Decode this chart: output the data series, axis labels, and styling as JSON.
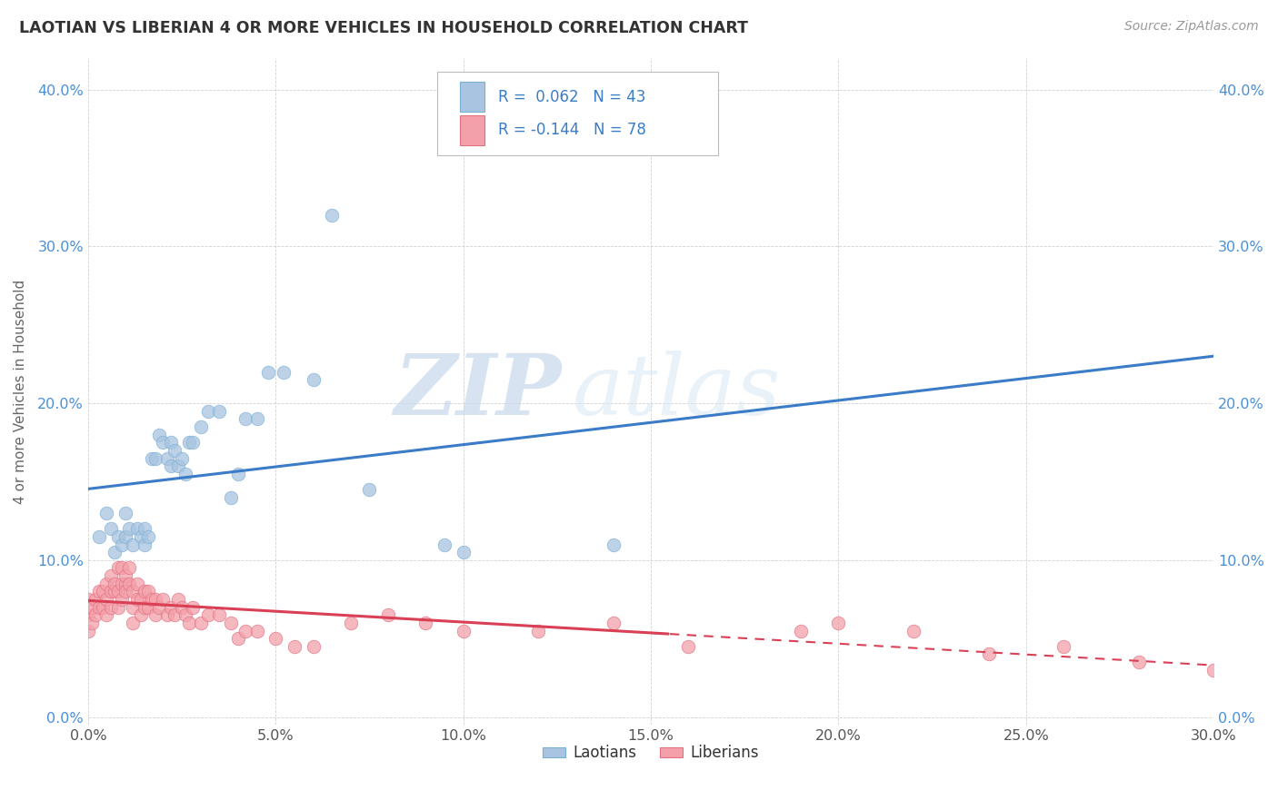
{
  "title": "LAOTIAN VS LIBERIAN 4 OR MORE VEHICLES IN HOUSEHOLD CORRELATION CHART",
  "source": "Source: ZipAtlas.com",
  "ylabel": "4 or more Vehicles in Household",
  "xlim": [
    0.0,
    0.3
  ],
  "ylim": [
    -0.005,
    0.42
  ],
  "xticks": [
    0.0,
    0.05,
    0.1,
    0.15,
    0.2,
    0.25,
    0.3
  ],
  "yticks": [
    0.0,
    0.1,
    0.2,
    0.3,
    0.4
  ],
  "xtick_labels": [
    "0.0%",
    "5.0%",
    "10.0%",
    "15.0%",
    "20.0%",
    "25.0%",
    "30.0%"
  ],
  "ytick_labels": [
    "0.0%",
    "10.0%",
    "20.0%",
    "30.0%",
    "40.0%"
  ],
  "laotian_color": "#a8c4e0",
  "liberian_color": "#f4a0aa",
  "laotian_edge_color": "#7aafd4",
  "liberian_edge_color": "#e07080",
  "laotian_line_color": "#3a7cc7",
  "liberian_line_color": "#d94055",
  "laotian_R": 0.062,
  "laotian_N": 43,
  "liberian_R": -0.144,
  "liberian_N": 78,
  "watermark_zip": "ZIP",
  "watermark_atlas": "atlas",
  "legend_laotian": "Laotians",
  "legend_liberian": "Liberians",
  "laotian_x": [
    0.003,
    0.005,
    0.006,
    0.007,
    0.008,
    0.009,
    0.01,
    0.01,
    0.011,
    0.012,
    0.013,
    0.014,
    0.015,
    0.015,
    0.016,
    0.017,
    0.018,
    0.019,
    0.02,
    0.021,
    0.022,
    0.022,
    0.023,
    0.024,
    0.025,
    0.026,
    0.027,
    0.028,
    0.03,
    0.032,
    0.035,
    0.038,
    0.04,
    0.042,
    0.045,
    0.048,
    0.052,
    0.06,
    0.065,
    0.075,
    0.095,
    0.1,
    0.14
  ],
  "laotian_y": [
    0.115,
    0.13,
    0.12,
    0.105,
    0.115,
    0.11,
    0.13,
    0.115,
    0.12,
    0.11,
    0.12,
    0.115,
    0.11,
    0.12,
    0.115,
    0.165,
    0.165,
    0.18,
    0.175,
    0.165,
    0.175,
    0.16,
    0.17,
    0.16,
    0.165,
    0.155,
    0.175,
    0.175,
    0.185,
    0.195,
    0.195,
    0.14,
    0.155,
    0.19,
    0.19,
    0.22,
    0.22,
    0.215,
    0.32,
    0.145,
    0.11,
    0.105,
    0.11
  ],
  "liberian_x": [
    0.0,
    0.0,
    0.0,
    0.001,
    0.001,
    0.002,
    0.002,
    0.003,
    0.003,
    0.004,
    0.004,
    0.005,
    0.005,
    0.005,
    0.006,
    0.006,
    0.006,
    0.007,
    0.007,
    0.008,
    0.008,
    0.008,
    0.009,
    0.009,
    0.009,
    0.01,
    0.01,
    0.01,
    0.011,
    0.011,
    0.012,
    0.012,
    0.012,
    0.013,
    0.013,
    0.014,
    0.014,
    0.015,
    0.015,
    0.016,
    0.016,
    0.017,
    0.018,
    0.018,
    0.019,
    0.02,
    0.021,
    0.022,
    0.023,
    0.024,
    0.025,
    0.026,
    0.027,
    0.028,
    0.03,
    0.032,
    0.035,
    0.038,
    0.04,
    0.042,
    0.045,
    0.05,
    0.055,
    0.06,
    0.07,
    0.08,
    0.09,
    0.1,
    0.12,
    0.14,
    0.16,
    0.19,
    0.2,
    0.22,
    0.24,
    0.26,
    0.28,
    0.3
  ],
  "liberian_y": [
    0.075,
    0.065,
    0.055,
    0.07,
    0.06,
    0.075,
    0.065,
    0.08,
    0.07,
    0.08,
    0.07,
    0.085,
    0.075,
    0.065,
    0.08,
    0.09,
    0.07,
    0.08,
    0.085,
    0.095,
    0.08,
    0.07,
    0.085,
    0.075,
    0.095,
    0.085,
    0.08,
    0.09,
    0.085,
    0.095,
    0.08,
    0.07,
    0.06,
    0.085,
    0.075,
    0.075,
    0.065,
    0.08,
    0.07,
    0.08,
    0.07,
    0.075,
    0.075,
    0.065,
    0.07,
    0.075,
    0.065,
    0.07,
    0.065,
    0.075,
    0.07,
    0.065,
    0.06,
    0.07,
    0.06,
    0.065,
    0.065,
    0.06,
    0.05,
    0.055,
    0.055,
    0.05,
    0.045,
    0.045,
    0.06,
    0.065,
    0.06,
    0.055,
    0.055,
    0.06,
    0.045,
    0.055,
    0.06,
    0.055,
    0.04,
    0.045,
    0.035,
    0.03
  ]
}
